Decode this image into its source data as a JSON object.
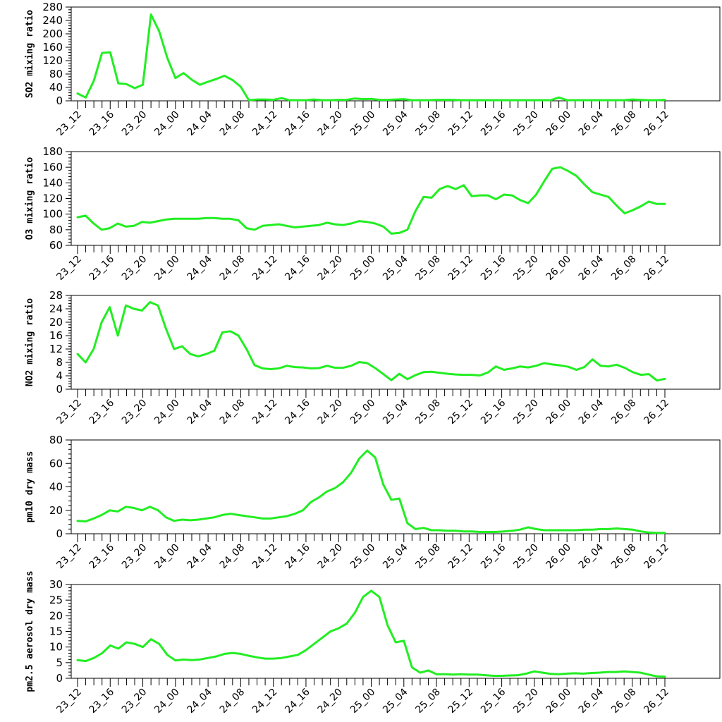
{
  "colors": {
    "series": "#22ee22",
    "axis": "#000000",
    "background": "#ffffff"
  },
  "chart_data": [
    {
      "type": "line",
      "ylabel": "SO2 mixing ratio",
      "ylim": [
        0,
        280
      ],
      "yticks": [
        0,
        40,
        80,
        120,
        160,
        200,
        240,
        280
      ],
      "ytick_labels": [
        "0",
        "40",
        "80",
        "120",
        "160",
        "200",
        "240",
        "280"
      ],
      "xticks": [
        "23_12",
        "23_16",
        "23_20",
        "24_00",
        "24_04",
        "24_08",
        "24_12",
        "24_16",
        "24_20",
        "25_00",
        "25_04",
        "25_08",
        "25_12",
        "25_16",
        "25_20",
        "26_00",
        "26_04",
        "26_08",
        "26_12"
      ],
      "series": [
        {
          "values": [
            22,
            10,
            60,
            143,
            145,
            52,
            50,
            38,
            48,
            258,
            208,
            128,
            68,
            83,
            63,
            48,
            57,
            65,
            75,
            62,
            42,
            2,
            4,
            4,
            3,
            8,
            2,
            2,
            2,
            4,
            2,
            2,
            3,
            3,
            7,
            5,
            6,
            3,
            3,
            4,
            5,
            2,
            2,
            2,
            3,
            3,
            3,
            2,
            2,
            2,
            2,
            2,
            2,
            2,
            2,
            2,
            2,
            2,
            2,
            10,
            2,
            2,
            2,
            2,
            2,
            2,
            2,
            2,
            4,
            3,
            2,
            2,
            3
          ]
        }
      ]
    },
    {
      "type": "line",
      "ylabel": "O3 mixing ratio",
      "ylim": [
        60,
        180
      ],
      "yticks": [
        60,
        80,
        100,
        120,
        140,
        160,
        180
      ],
      "ytick_labels": [
        "60",
        "80",
        "100",
        "120",
        "140",
        "160",
        "180"
      ],
      "xticks": [
        "23_12",
        "23_16",
        "23_20",
        "24_00",
        "24_04",
        "24_08",
        "24_12",
        "24_16",
        "24_20",
        "25_00",
        "25_04",
        "25_08",
        "25_12",
        "25_16",
        "25_20",
        "26_00",
        "26_04",
        "26_08",
        "26_12"
      ],
      "series": [
        {
          "values": [
            96,
            98,
            88,
            80,
            82,
            88,
            84,
            85,
            90,
            89,
            91,
            93,
            94,
            94,
            94,
            94,
            95,
            95,
            94,
            94,
            92,
            82,
            80,
            85,
            86,
            87,
            85,
            83,
            84,
            85,
            86,
            89,
            87,
            86,
            88,
            91,
            90,
            88,
            84,
            75,
            76,
            80,
            104,
            122,
            121,
            132,
            136,
            132,
            137,
            123,
            124,
            124,
            119,
            125,
            124,
            118,
            114,
            125,
            142,
            158,
            160,
            155,
            149,
            138,
            128,
            125,
            122,
            111,
            101,
            105,
            110,
            116,
            113,
            113
          ]
        }
      ]
    },
    {
      "type": "line",
      "ylabel": "NO2 mixing ratio",
      "ylim": [
        0,
        28
      ],
      "yticks": [
        0,
        4,
        8,
        12,
        16,
        20,
        24,
        28
      ],
      "ytick_labels": [
        "0",
        "4",
        "8",
        "12",
        "16",
        "20",
        "24",
        "28"
      ],
      "xticks": [
        "23_12",
        "23_16",
        "23_20",
        "24_00",
        "24_04",
        "24_08",
        "24_12",
        "24_16",
        "24_20",
        "25_00",
        "25_04",
        "25_08",
        "25_12",
        "25_16",
        "25_20",
        "26_00",
        "26_04",
        "26_08",
        "26_12"
      ],
      "series": [
        {
          "values": [
            10.5,
            8,
            12,
            20,
            24.5,
            16,
            25,
            24,
            23.5,
            26,
            25,
            18,
            12,
            12.8,
            10.5,
            9.8,
            10.5,
            11.5,
            17,
            17.3,
            16,
            12,
            7.2,
            6.2,
            6,
            6.2,
            7,
            6.6,
            6.5,
            6.2,
            6.3,
            7,
            6.4,
            6.4,
            7,
            8.1,
            7.8,
            6.3,
            4.5,
            2.7,
            4.6,
            3,
            4.2,
            5.1,
            5.2,
            4.9,
            4.6,
            4.4,
            4.3,
            4.3,
            4.1,
            5,
            6.8,
            5.8,
            6.2,
            6.8,
            6.5,
            7,
            7.8,
            7.4,
            7.1,
            6.7,
            5.8,
            6.6,
            8.9,
            7,
            6.8,
            7.3,
            6.4,
            5.1,
            4.3,
            4.5,
            2.6,
            3.1
          ]
        }
      ]
    },
    {
      "type": "line",
      "ylabel": "pm10 dry mass",
      "ylim": [
        0,
        80
      ],
      "yticks": [
        0,
        20,
        40,
        60,
        80
      ],
      "ytick_labels": [
        "0",
        "20",
        "40",
        "60",
        "80"
      ],
      "xticks": [
        "23_12",
        "23_16",
        "23_20",
        "24_00",
        "24_04",
        "24_08",
        "24_12",
        "24_16",
        "24_20",
        "25_00",
        "25_04",
        "25_08",
        "25_12",
        "25_16",
        "25_20",
        "26_00",
        "26_04",
        "26_08",
        "26_12"
      ],
      "series": [
        {
          "values": [
            11,
            10.5,
            13,
            16,
            20,
            19,
            23,
            22,
            20,
            23,
            20,
            14,
            11,
            12,
            11.5,
            12,
            13,
            14,
            16,
            17,
            16,
            15,
            14,
            13,
            13,
            14,
            15,
            17,
            20,
            27,
            31,
            36,
            39,
            44,
            52,
            64,
            71,
            65,
            42,
            29,
            30,
            9,
            4,
            5,
            3,
            3,
            2.5,
            2.5,
            2,
            2,
            1.5,
            1.5,
            1.5,
            2,
            2.5,
            3.5,
            5.5,
            4,
            3,
            3,
            3,
            3,
            3,
            3.5,
            3.5,
            4,
            4,
            4.5,
            4,
            3.5,
            2,
            1,
            0.8,
            0.8
          ]
        }
      ]
    },
    {
      "type": "line",
      "ylabel": "pm2.5 aerosol dry mass",
      "ylim": [
        0,
        30
      ],
      "yticks": [
        0,
        5,
        10,
        15,
        20,
        25,
        30
      ],
      "ytick_labels": [
        "0",
        "5",
        "10",
        "15",
        "20",
        "25",
        "30"
      ],
      "xticks": [
        "23_12",
        "23_16",
        "23_20",
        "24_00",
        "24_04",
        "24_08",
        "24_12",
        "24_16",
        "24_20",
        "25_00",
        "25_04",
        "25_08",
        "25_12",
        "25_16",
        "25_20",
        "26_00",
        "26_04",
        "26_08",
        "26_12"
      ],
      "series": [
        {
          "values": [
            5.8,
            5.5,
            6.5,
            8,
            10.5,
            9.5,
            11.5,
            11,
            10,
            12.5,
            11,
            7.5,
            5.7,
            6,
            5.8,
            6,
            6.5,
            7,
            7.8,
            8.1,
            7.8,
            7.2,
            6.7,
            6.3,
            6.3,
            6.5,
            7,
            7.5,
            9,
            11,
            13,
            15,
            16,
            17.5,
            21,
            26,
            28,
            26,
            17,
            11.5,
            12,
            3.5,
            1.8,
            2.5,
            1.3,
            1.3,
            1.2,
            1.3,
            1.2,
            1.2,
            1,
            0.8,
            0.8,
            0.9,
            1,
            1.5,
            2.2,
            1.8,
            1.4,
            1.3,
            1.5,
            1.6,
            1.5,
            1.7,
            1.8,
            2,
            2,
            2.2,
            2,
            1.8,
            1.2,
            0.6,
            0.5
          ]
        }
      ]
    }
  ]
}
